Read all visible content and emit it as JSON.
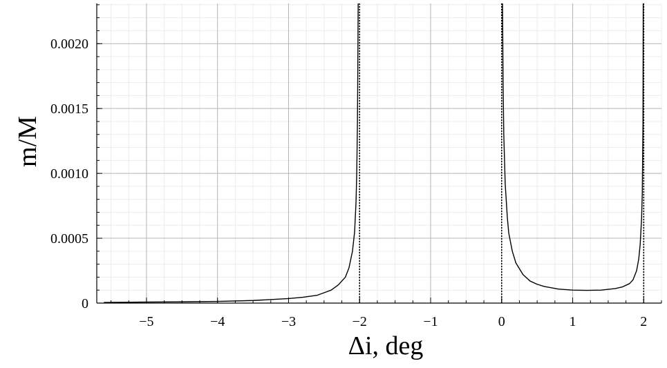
{
  "chart_data": {
    "type": "line",
    "title": "",
    "xlabel": "Δi, deg",
    "ylabel": "m/M",
    "xlim": [
      -5.7,
      2.25
    ],
    "ylim": [
      0,
      0.00231
    ],
    "grid": true,
    "x_ticks": [
      -5,
      -4,
      -3,
      -2,
      -1,
      0,
      1,
      2
    ],
    "x_tick_labels": [
      "−5",
      "−4",
      "−3",
      "−2",
      "−1",
      "0",
      "1",
      "2"
    ],
    "y_ticks": [
      0,
      0.0005,
      0.001,
      0.0015,
      0.002
    ],
    "y_tick_labels": [
      "0",
      "0.0005",
      "0.0010",
      "0.0015",
      "0.0020"
    ],
    "vertical_asymptotes": [
      -2,
      0,
      2
    ],
    "series": [
      {
        "x": [
          -5.6,
          -5.0,
          -4.5,
          -4.0,
          -3.5,
          -3.0,
          -2.8,
          -2.6,
          -2.5,
          -2.4,
          -2.3,
          -2.2,
          -2.15,
          -2.1,
          -2.07,
          -2.05,
          -2.04,
          -2.03,
          -2.025,
          -2.02,
          -2.018
        ],
        "y": [
          5e-06,
          8e-06,
          1e-05,
          1.3e-05,
          2e-05,
          3.5e-05,
          4.5e-05,
          6e-05,
          8e-05,
          0.0001,
          0.00014,
          0.0002,
          0.00027,
          0.0004,
          0.00055,
          0.00078,
          0.001,
          0.0014,
          0.0018,
          0.0023,
          0.00231
        ]
      },
      {
        "x": [
          0.012,
          0.015,
          0.02,
          0.03,
          0.05,
          0.08,
          0.1,
          0.15,
          0.2,
          0.3,
          0.4,
          0.5,
          0.6,
          0.8,
          1.0,
          1.2,
          1.4,
          1.6,
          1.7,
          1.8,
          1.85,
          1.9,
          1.93,
          1.95,
          1.97,
          1.98,
          1.99,
          1.993
        ],
        "y": [
          0.00231,
          0.0021,
          0.0017,
          0.0013,
          0.00092,
          0.00066,
          0.00054,
          0.0004,
          0.00031,
          0.00022,
          0.00017,
          0.000145,
          0.000128,
          0.000108,
          0.0001,
          9.8e-05,
          0.0001,
          0.000112,
          0.000125,
          0.00015,
          0.00018,
          0.00025,
          0.00034,
          0.00045,
          0.00065,
          0.00085,
          0.0014,
          0.00231
        ]
      }
    ]
  }
}
